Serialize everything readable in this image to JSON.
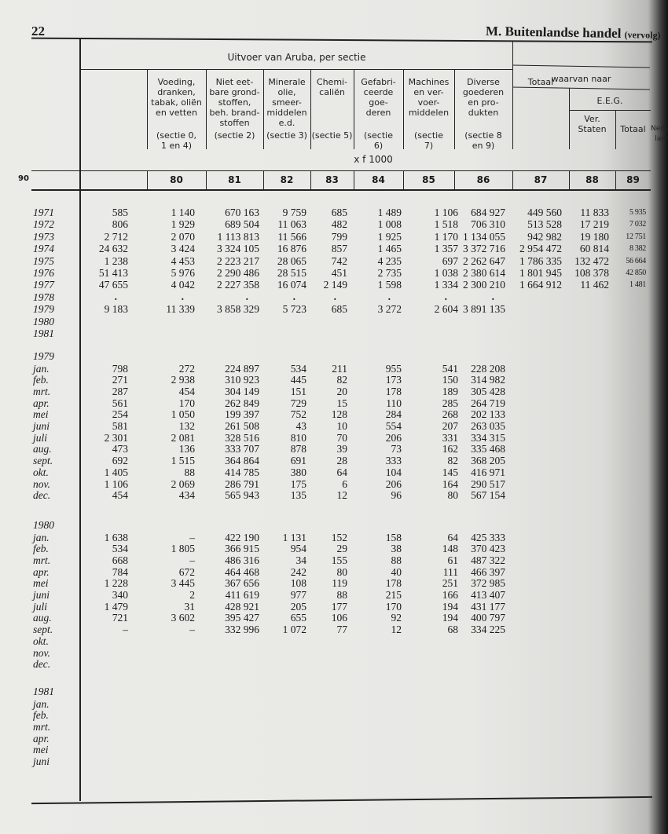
{
  "page": {
    "number": "22",
    "title": "M.  Buitenlandse handel",
    "title_suffix": "(vervolg)"
  },
  "header": {
    "group": "Uitvoer van Aruba, per sectie",
    "unit": "x f 1000",
    "waarvan": "waarvan naar",
    "eeg": "E.E.G.",
    "columns": [
      {
        "code": "80",
        "label": "Voeding,\ndranken,\ntabak, oliën\nen vetten",
        "sectie": "(sectie 0,\n1 en 4)"
      },
      {
        "code": "81",
        "label": "Niet eet-\nbare grond-\nstoffen,\nbeh. brand-\nstoffen",
        "sectie": "(sectie 2)"
      },
      {
        "code": "82",
        "label": "Minerale\nolie, smeer-\nmiddelen\ne.d.",
        "sectie": "(sectie 3)"
      },
      {
        "code": "83",
        "label": "Chemi-\ncaliën",
        "sectie": "(sectie 5)"
      },
      {
        "code": "84",
        "label": "Gefabri-\nceerde\ngoe-\nderen",
        "sectie": "(sectie\n6)"
      },
      {
        "code": "85",
        "label": "Machines\nen ver-\nvoer-\nmiddelen",
        "sectie": "(sectie\n7)"
      },
      {
        "code": "86",
        "label": "Diverse\ngoederen\nen pro-\ndukten",
        "sectie": "(sectie 8\nen 9)"
      },
      {
        "code": "87",
        "label": "Totaal",
        "sectie": ""
      },
      {
        "code": "88",
        "label": "Ver.\nStaten",
        "sectie": ""
      },
      {
        "code": "89",
        "label": "Totaal",
        "sectie": ""
      },
      {
        "code": "90",
        "label": "Neder-\nland",
        "sectie": ""
      }
    ]
  },
  "sections": [
    {
      "heading": "",
      "rows": [
        {
          "label": "1971",
          "values": [
            "585",
            "1 140",
            "670 163",
            "9 759",
            "685",
            "1 489",
            "1 106",
            "684 927",
            "449 560",
            "11 833",
            "5 935"
          ]
        },
        {
          "label": "1972",
          "values": [
            "806",
            "1 929",
            "689 504",
            "11 063",
            "482",
            "1 008",
            "1 518",
            "706 310",
            "513 528",
            "17 219",
            "7 032"
          ]
        },
        {
          "label": "1973",
          "values": [
            "2 712",
            "2 070",
            "1 113 813",
            "11 566",
            "799",
            "1 925",
            "1 170",
            "1 134 055",
            "942 982",
            "19 180",
            "12 751"
          ]
        },
        {
          "label": "1974",
          "values": [
            "24 632",
            "3 424",
            "3 324 105",
            "16 876",
            "857",
            "1 465",
            "1 357",
            "3 372 716",
            "2 954 472",
            "60 814",
            "8 382"
          ]
        },
        {
          "label": "1975",
          "values": [
            "1 238",
            "4 453",
            "2 223 217",
            "28 065",
            "742",
            "4 235",
            "697",
            "2 262 647",
            "1 786 335",
            "132 472",
            "56 664"
          ]
        },
        {
          "label": "1976",
          "values": [
            "51 413",
            "5 976",
            "2 290 486",
            "28 515",
            "451",
            "2 735",
            "1 038",
            "2 380 614",
            "1 801 945",
            "108 378",
            "42 850"
          ]
        },
        {
          "label": "1977",
          "values": [
            "47 655",
            "4 042",
            "2 227 358",
            "16 074",
            "2 149",
            "1 598",
            "1 334",
            "2 300 210",
            "1 664 912",
            "11 462",
            "1 481"
          ]
        },
        {
          "label": "1978",
          "values": [
            ".",
            ".",
            ".",
            ".",
            ".",
            ".",
            ".",
            ".",
            "",
            "",
            ""
          ]
        },
        {
          "label": "1979",
          "values": [
            "9 183",
            "11 339",
            "3 858 329",
            "5 723",
            "685",
            "3 272",
            "2 604",
            "3 891 135",
            "",
            "",
            ""
          ]
        },
        {
          "label": "1980",
          "values": [
            "",
            "",
            "",
            "",
            "",
            "",
            "",
            "",
            "",
            "",
            ""
          ]
        },
        {
          "label": "1981",
          "values": [
            "",
            "",
            "",
            "",
            "",
            "",
            "",
            "",
            "",
            "",
            ""
          ]
        }
      ]
    },
    {
      "heading": "1979",
      "rows": [
        {
          "label": "jan.",
          "values": [
            "798",
            "272",
            "224 897",
            "534",
            "211",
            "955",
            "541",
            "228 208",
            "",
            "",
            ""
          ]
        },
        {
          "label": "feb.",
          "values": [
            "271",
            "2 938",
            "310 923",
            "445",
            "82",
            "173",
            "150",
            "314 982",
            "",
            "",
            ""
          ]
        },
        {
          "label": "mrt.",
          "values": [
            "287",
            "454",
            "304 149",
            "151",
            "20",
            "178",
            "189",
            "305 428",
            "",
            "",
            ""
          ]
        },
        {
          "label": "apr.",
          "values": [
            "561",
            "170",
            "262 849",
            "729",
            "15",
            "110",
            "285",
            "264 719",
            "",
            "",
            ""
          ]
        },
        {
          "label": "mei",
          "values": [
            "254",
            "1 050",
            "199 397",
            "752",
            "128",
            "284",
            "268",
            "202 133",
            "",
            "",
            ""
          ]
        },
        {
          "label": "juni",
          "values": [
            "581",
            "132",
            "261 508",
            "43",
            "10",
            "554",
            "207",
            "263 035",
            "",
            "",
            ""
          ]
        },
        {
          "label": "juli",
          "values": [
            "2 301",
            "2 081",
            "328 516",
            "810",
            "70",
            "206",
            "331",
            "334 315",
            "",
            "",
            ""
          ]
        },
        {
          "label": "aug.",
          "values": [
            "473",
            "136",
            "333 707",
            "878",
            "39",
            "73",
            "162",
            "335 468",
            "",
            "",
            ""
          ]
        },
        {
          "label": "sept.",
          "values": [
            "692",
            "1 515",
            "364 864",
            "691",
            "28",
            "333",
            "82",
            "368 205",
            "",
            "",
            ""
          ]
        },
        {
          "label": "okt.",
          "values": [
            "1 405",
            "88",
            "414 785",
            "380",
            "64",
            "104",
            "145",
            "416 971",
            "",
            "",
            ""
          ]
        },
        {
          "label": "nov.",
          "values": [
            "1 106",
            "2 069",
            "286 791",
            "175",
            "6",
            "206",
            "164",
            "290 517",
            "",
            "",
            ""
          ]
        },
        {
          "label": "dec.",
          "values": [
            "454",
            "434",
            "565 943",
            "135",
            "12",
            "96",
            "80",
            "567 154",
            "",
            "",
            ""
          ]
        }
      ]
    },
    {
      "heading": "1980",
      "rows": [
        {
          "label": "jan.",
          "values": [
            "1 638",
            "–",
            "422 190",
            "1 131",
            "152",
            "158",
            "64",
            "425 333",
            "",
            "",
            ""
          ]
        },
        {
          "label": "feb.",
          "values": [
            "534",
            "1 805",
            "366 915",
            "954",
            "29",
            "38",
            "148",
            "370 423",
            "",
            "",
            ""
          ]
        },
        {
          "label": "mrt.",
          "values": [
            "668",
            "–",
            "486 316",
            "34",
            "155",
            "88",
            "61",
            "487 322",
            "",
            "",
            ""
          ]
        },
        {
          "label": "apr.",
          "values": [
            "784",
            "672",
            "464 468",
            "242",
            "80",
            "40",
            "111",
            "466 397",
            "",
            "",
            ""
          ]
        },
        {
          "label": "mei",
          "values": [
            "1 228",
            "3 445",
            "367 656",
            "108",
            "119",
            "178",
            "251",
            "372 985",
            "",
            "",
            ""
          ]
        },
        {
          "label": "juni",
          "values": [
            "340",
            "2",
            "411 619",
            "977",
            "88",
            "215",
            "166",
            "413 407",
            "",
            "",
            ""
          ]
        },
        {
          "label": "juli",
          "values": [
            "1 479",
            "31",
            "428 921",
            "205",
            "177",
            "170",
            "194",
            "431 177",
            "",
            "",
            ""
          ]
        },
        {
          "label": "aug.",
          "values": [
            "721",
            "3 602",
            "395 427",
            "655",
            "106",
            "92",
            "194",
            "400 797",
            "",
            "",
            ""
          ]
        },
        {
          "label": "sept.",
          "values": [
            "–",
            "–",
            "332 996",
            "1 072",
            "77",
            "12",
            "68",
            "334 225",
            "",
            "",
            ""
          ]
        },
        {
          "label": "okt.",
          "values": [
            "",
            "",
            "",
            "",
            "",
            "",
            "",
            "",
            "",
            "",
            ""
          ]
        },
        {
          "label": "nov.",
          "values": [
            "",
            "",
            "",
            "",
            "",
            "",
            "",
            "",
            "",
            "",
            ""
          ]
        },
        {
          "label": "dec.",
          "values": [
            "",
            "",
            "",
            "",
            "",
            "",
            "",
            "",
            "",
            "",
            ""
          ]
        }
      ]
    },
    {
      "heading": "1981",
      "rows": [
        {
          "label": "jan.",
          "values": [
            "",
            "",
            "",
            "",
            "",
            "",
            "",
            "",
            "",
            "",
            ""
          ]
        },
        {
          "label": "feb.",
          "values": [
            "",
            "",
            "",
            "",
            "",
            "",
            "",
            "",
            "",
            "",
            ""
          ]
        },
        {
          "label": "mrt.",
          "values": [
            "",
            "",
            "",
            "",
            "",
            "",
            "",
            "",
            "",
            "",
            ""
          ]
        },
        {
          "label": "apr.",
          "values": [
            "",
            "",
            "",
            "",
            "",
            "",
            "",
            "",
            "",
            "",
            ""
          ]
        },
        {
          "label": "mei",
          "values": [
            "",
            "",
            "",
            "",
            "",
            "",
            "",
            "",
            "",
            "",
            ""
          ]
        },
        {
          "label": "juni",
          "values": [
            "",
            "",
            "",
            "",
            "",
            "",
            "",
            "",
            "",
            "",
            ""
          ]
        }
      ]
    }
  ]
}
